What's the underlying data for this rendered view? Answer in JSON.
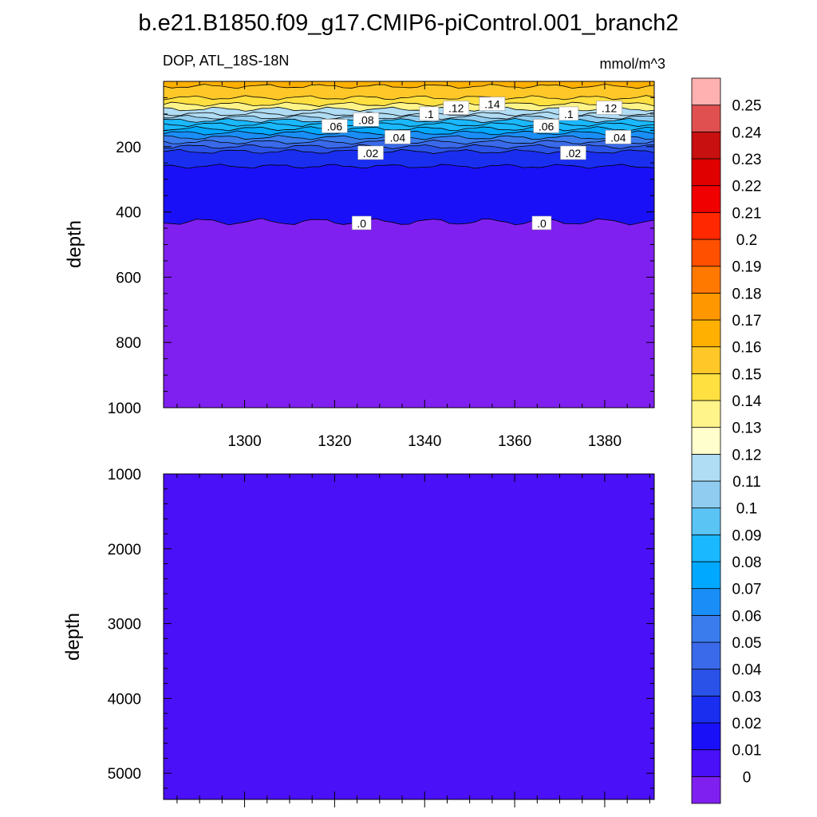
{
  "title": "b.e21.B1850.f09_g17.CMIP6-piControl.001_branch2",
  "chart_data": {
    "type": "heatmap",
    "subtitle_left": "DOP, ATL_18S-18N",
    "units": "mmol/m^3",
    "xlabel": "",
    "ylabel": "depth",
    "x_range": [
      1282,
      1391
    ],
    "x_ticks": [
      1300,
      1320,
      1340,
      1360,
      1380
    ],
    "upper_panel": {
      "ylim": [
        1000,
        0
      ],
      "y_ticks": [
        200,
        400,
        600,
        800,
        1000
      ],
      "contour_depths": [
        {
          "level": 0.15,
          "depth": 15
        },
        {
          "level": 0.14,
          "depth": 50
        },
        {
          "level": 0.13,
          "depth": 70
        },
        {
          "level": 0.12,
          "depth": 85
        },
        {
          "level": 0.11,
          "depth": 100
        },
        {
          "level": 0.1,
          "depth": 110
        },
        {
          "level": 0.09,
          "depth": 120
        },
        {
          "level": 0.08,
          "depth": 132
        },
        {
          "level": 0.07,
          "depth": 145
        },
        {
          "level": 0.06,
          "depth": 158
        },
        {
          "level": 0.05,
          "depth": 172
        },
        {
          "level": 0.04,
          "depth": 186
        },
        {
          "level": 0.03,
          "depth": 200
        },
        {
          "level": 0.02,
          "depth": 215
        },
        {
          "level": 0.01,
          "depth": 260
        },
        {
          "level": 0.0,
          "depth": 430
        }
      ],
      "contour_labels": [
        {
          "text": ".14",
          "x": 1355,
          "depth": 70
        },
        {
          "text": ".12",
          "x": 1347,
          "depth": 82
        },
        {
          "text": ".12",
          "x": 1381,
          "depth": 82
        },
        {
          "text": ".1",
          "x": 1341,
          "depth": 100
        },
        {
          "text": ".1",
          "x": 1372,
          "depth": 100
        },
        {
          "text": ".08",
          "x": 1327,
          "depth": 118
        },
        {
          "text": ".06",
          "x": 1320,
          "depth": 138
        },
        {
          "text": ".06",
          "x": 1367,
          "depth": 138
        },
        {
          "text": ".04",
          "x": 1334,
          "depth": 172
        },
        {
          "text": ".04",
          "x": 1383,
          "depth": 172
        },
        {
          "text": ".02",
          "x": 1328,
          "depth": 220
        },
        {
          "text": ".02",
          "x": 1373,
          "depth": 220
        },
        {
          "text": ".0",
          "x": 1326,
          "depth": 435
        },
        {
          "text": ".0",
          "x": 1366,
          "depth": 435
        }
      ]
    },
    "lower_panel": {
      "ylim": [
        5350,
        1000
      ],
      "y_ticks": [
        1000,
        2000,
        3000,
        4000,
        5000
      ],
      "value": 0
    },
    "colorbar": {
      "labels": [
        "0",
        "0.01",
        "0.02",
        "0.03",
        "0.04",
        "0.05",
        "0.06",
        "0.07",
        "0.08",
        "0.09",
        "0.1",
        "0.11",
        "0.12",
        "0.13",
        "0.14",
        "0.15",
        "0.16",
        "0.17",
        "0.18",
        "0.19",
        "0.2",
        "0.21",
        "0.22",
        "0.23",
        "0.24",
        "0.25"
      ],
      "colors": [
        "#8020f0",
        "#4a10f8",
        "#1a10f8",
        "#1a2ef0",
        "#2a52e8",
        "#3a6aea",
        "#3a7cee",
        "#1a8ef6",
        "#00a8ff",
        "#1ab8ff",
        "#5ac4f4",
        "#90ccf0",
        "#b0dcf4",
        "#fffecc",
        "#fff48a",
        "#ffe040",
        "#ffc828",
        "#ffb000",
        "#ff9800",
        "#ff7800",
        "#ff5000",
        "#ff2800",
        "#f00000",
        "#e00000",
        "#c81010",
        "#e05050",
        "#ffb0b0"
      ]
    }
  }
}
